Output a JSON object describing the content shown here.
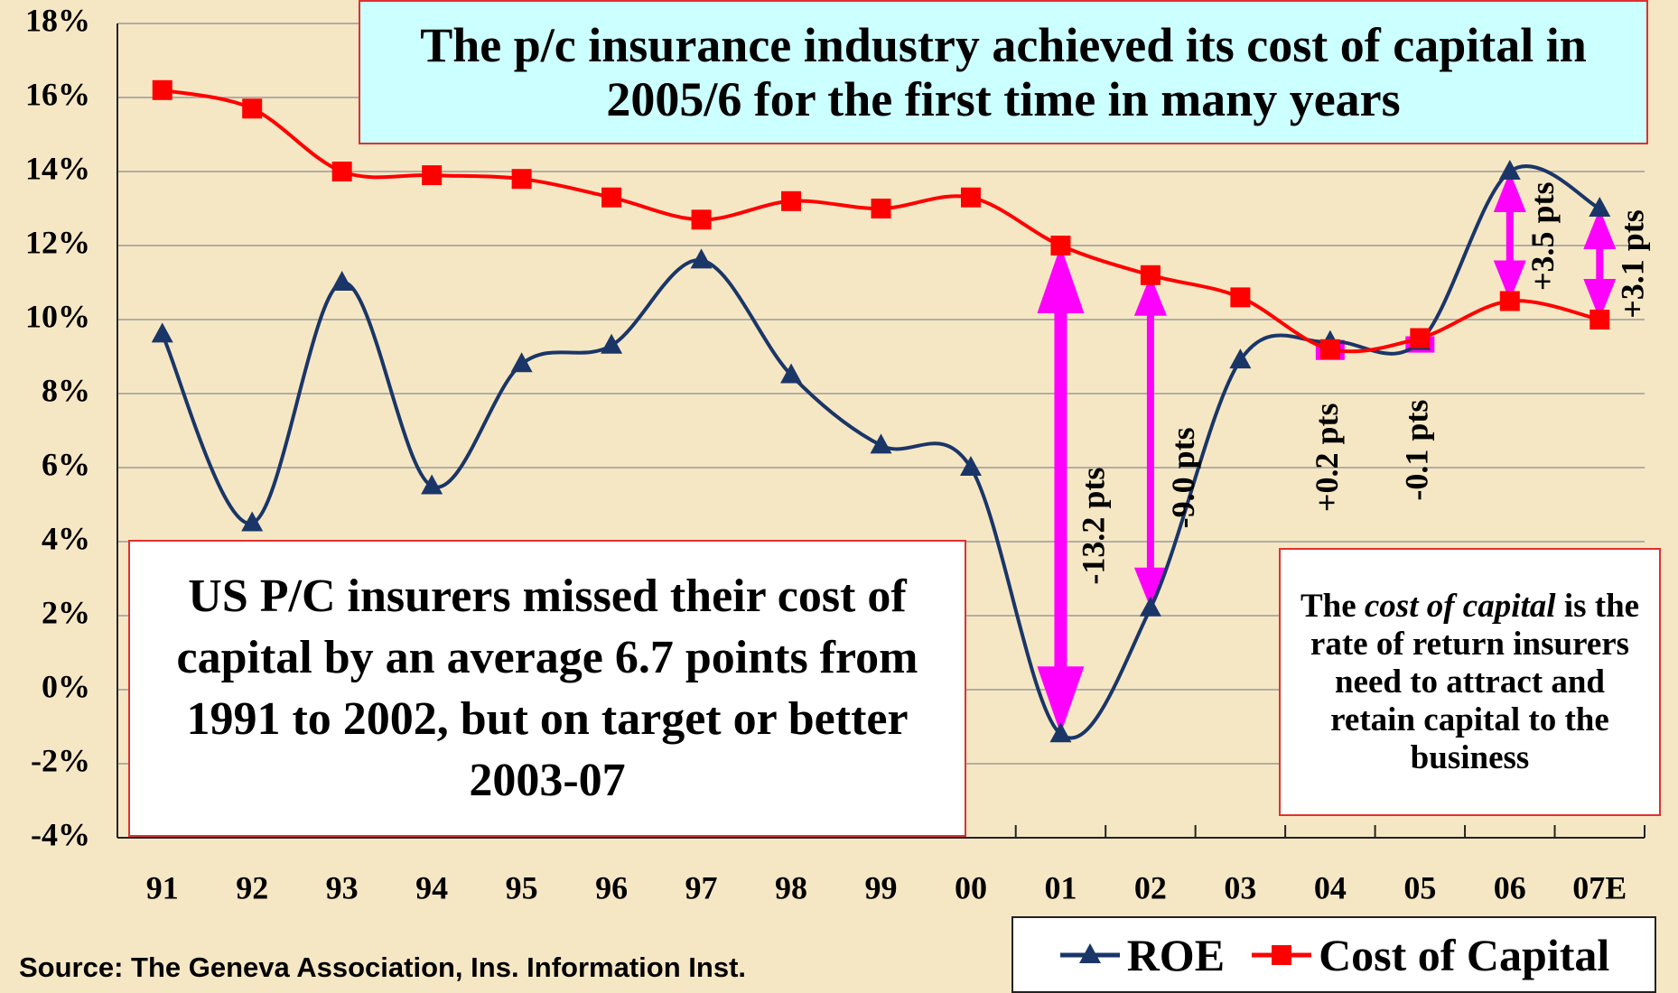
{
  "chart_data": {
    "type": "line",
    "title": "The p/c insurance industry achieved its cost of capital in 2005/6 for the first time in many years",
    "categories": [
      "91",
      "92",
      "93",
      "94",
      "95",
      "96",
      "97",
      "98",
      "99",
      "00",
      "01",
      "02",
      "03",
      "04",
      "05",
      "06",
      "07E"
    ],
    "series": [
      {
        "name": "ROE",
        "color": "#1a3668",
        "marker": "triangle",
        "values": [
          9.6,
          4.5,
          11.0,
          5.5,
          8.8,
          9.3,
          11.6,
          8.5,
          6.6,
          6.0,
          -1.2,
          2.2,
          8.9,
          9.4,
          9.4,
          14.0,
          13.0
        ]
      },
      {
        "name": "Cost of Capital",
        "color": "#ff0000",
        "marker": "square",
        "values": [
          16.2,
          15.7,
          14.0,
          13.9,
          13.8,
          13.3,
          12.7,
          13.2,
          13.0,
          13.3,
          12.0,
          11.2,
          10.6,
          9.2,
          9.5,
          10.5,
          10.0
        ]
      }
    ],
    "ylim": [
      -4,
      18
    ],
    "yticks": [
      {
        "value": -4,
        "label": "-4%"
      },
      {
        "value": -2,
        "label": "-2%"
      },
      {
        "value": 0,
        "label": "0%"
      },
      {
        "value": 2,
        "label": "2%"
      },
      {
        "value": 4,
        "label": "4%"
      },
      {
        "value": 6,
        "label": "6%"
      },
      {
        "value": 8,
        "label": "8%"
      },
      {
        "value": 10,
        "label": "10%"
      },
      {
        "value": 12,
        "label": "12%"
      },
      {
        "value": 14,
        "label": "14%"
      },
      {
        "value": 16,
        "label": "16%"
      },
      {
        "value": 18,
        "label": "18%"
      }
    ],
    "grid": true,
    "legend": "bottom-right",
    "annotations": [
      {
        "category": "01",
        "text": "-13.2 pts",
        "arrow": true
      },
      {
        "category": "02",
        "text": "-9.0 pts",
        "arrow": true
      },
      {
        "category": "04",
        "text": "+0.2 pts",
        "arrow": false
      },
      {
        "category": "05",
        "text": "-0.1 pts",
        "arrow": false
      },
      {
        "category": "06",
        "text": "+3.5 pts",
        "arrow": true
      },
      {
        "category": "07E",
        "text": "+3.1 pts",
        "arrow": true
      }
    ],
    "arrow_color": "#ff00ff",
    "left_note": "US P/C insurers missed their cost of capital by an average 6.7 points from 1991 to 2002, but on target or better 2003-07",
    "right_note": {
      "before": "The ",
      "italic": "cost of capital",
      "after": " is the rate of return insurers need to attract and retain capital to the business"
    },
    "source": "Source:  The Geneva Association, Ins. Information Inst."
  }
}
